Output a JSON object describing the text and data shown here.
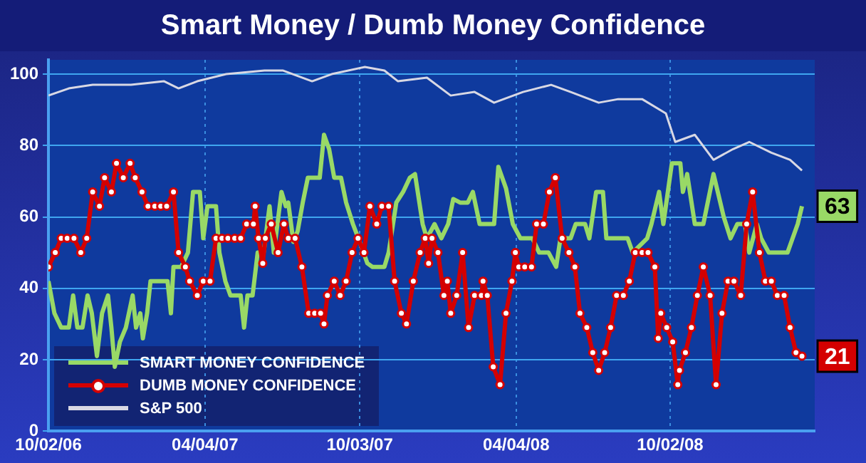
{
  "chart_data": {
    "type": "line",
    "title": "Smart Money / Dumb Money Confidence",
    "xlim": [
      "2006-10-02",
      "2009-03-21"
    ],
    "xticks": [
      {
        "value": "2006-10-02",
        "label": "10/02/06"
      },
      {
        "value": "2007-04-04",
        "label": "04/04/07"
      },
      {
        "value": "2007-10-03",
        "label": "10/03/07"
      },
      {
        "value": "2008-04-04",
        "label": "04/04/08"
      },
      {
        "value": "2008-10-02",
        "label": "10/02/08"
      }
    ],
    "ylim": [
      0,
      104
    ],
    "yticks": [
      0,
      20,
      40,
      60,
      80,
      100
    ],
    "grid": true,
    "legend": "bottom left",
    "series": [
      {
        "name": "SMART MONEY CONFIDENCE",
        "color": "#99d966",
        "marker": "none",
        "x": [
          "2006-10-02",
          "2006-10-09",
          "2006-10-17",
          "2006-10-26",
          "2006-10-31",
          "2006-11-05",
          "2006-11-11",
          "2006-11-17",
          "2006-11-22",
          "2006-11-28",
          "2006-12-04",
          "2006-12-11",
          "2006-12-15",
          "2006-12-19",
          "2006-12-25",
          "2007-01-01",
          "2007-01-09",
          "2007-01-13",
          "2007-01-18",
          "2007-01-21",
          "2007-01-26",
          "2007-01-30",
          "2007-02-19",
          "2007-02-23",
          "2007-02-26",
          "2007-03-07",
          "2007-03-15",
          "2007-03-21",
          "2007-03-29",
          "2007-04-02",
          "2007-04-07",
          "2007-04-17",
          "2007-04-21",
          "2007-04-28",
          "2007-05-04",
          "2007-05-16",
          "2007-05-20",
          "2007-05-24",
          "2007-05-30",
          "2007-06-05",
          "2007-06-12",
          "2007-06-19",
          "2007-06-24",
          "2007-07-03",
          "2007-07-08",
          "2007-07-11",
          "2007-07-17",
          "2007-07-22",
          "2007-07-28",
          "2007-08-03",
          "2007-08-17",
          "2007-08-22",
          "2007-08-28",
          "2007-09-03",
          "2007-09-11",
          "2007-09-17",
          "2007-09-25",
          "2007-10-03",
          "2007-10-12",
          "2007-10-18",
          "2007-11-01",
          "2007-11-06",
          "2007-11-15",
          "2007-11-23",
          "2007-12-01",
          "2007-12-07",
          "2007-12-16",
          "2007-12-21",
          "2007-12-30",
          "2008-01-07",
          "2008-01-15",
          "2008-01-21",
          "2008-01-29",
          "2008-02-07",
          "2008-02-13",
          "2008-02-21",
          "2008-03-09",
          "2008-03-14",
          "2008-03-23",
          "2008-03-31",
          "2008-04-09",
          "2008-04-23",
          "2008-05-01",
          "2008-05-12",
          "2008-05-21",
          "2008-05-26",
          "2008-06-07",
          "2008-06-13",
          "2008-06-24",
          "2008-06-29",
          "2008-07-07",
          "2008-07-15",
          "2008-07-19",
          "2008-08-13",
          "2008-08-19",
          "2008-09-05",
          "2008-09-10",
          "2008-09-19",
          "2008-09-24",
          "2008-10-04",
          "2008-10-14",
          "2008-10-17",
          "2008-10-22",
          "2008-10-31",
          "2008-11-10",
          "2008-11-22",
          "2008-12-04",
          "2008-12-12",
          "2008-12-20",
          "2008-12-29",
          "2009-01-03",
          "2009-01-12",
          "2009-01-17",
          "2009-01-26",
          "2009-02-17",
          "2009-02-23",
          "2009-03-01",
          "2009-03-06"
        ],
        "values": [
          42,
          33,
          29,
          29,
          38,
          29,
          29,
          38,
          33,
          21,
          33,
          38,
          29,
          18,
          25,
          29,
          38,
          29,
          33,
          26,
          33,
          42,
          42,
          33,
          46,
          46,
          50,
          67,
          67,
          54,
          63,
          63,
          50,
          42,
          38,
          38,
          29,
          38,
          38,
          50,
          50,
          63,
          50,
          67,
          63,
          64,
          53,
          56,
          64,
          71,
          71,
          83,
          79,
          71,
          71,
          64,
          58,
          53,
          47,
          46,
          46,
          50,
          64,
          67,
          71,
          72,
          58,
          54,
          58,
          54,
          58,
          65,
          64,
          64,
          67,
          58,
          58,
          74,
          68,
          58,
          54,
          54,
          50,
          50,
          46,
          54,
          54,
          58,
          58,
          54,
          67,
          67,
          54,
          54,
          50,
          54,
          58,
          67,
          58,
          75,
          75,
          67,
          72,
          58,
          58,
          72,
          60,
          54,
          58,
          58,
          50,
          58,
          54,
          50,
          50,
          54,
          58,
          63
        ]
      },
      {
        "name": "DUMB MONEY CONFIDENCE",
        "color": "#d40000",
        "marker": "circle",
        "x": [
          "2006-10-02",
          "2006-10-10",
          "2006-10-17",
          "2006-10-24",
          "2006-11-01",
          "2006-11-09",
          "2006-11-16",
          "2006-11-23",
          "2006-12-01",
          "2006-12-07",
          "2006-12-15",
          "2006-12-21",
          "2006-12-29",
          "2007-01-06",
          "2007-01-12",
          "2007-01-20",
          "2007-01-27",
          "2007-02-04",
          "2007-02-11",
          "2007-02-18",
          "2007-02-26",
          "2007-03-04",
          "2007-03-12",
          "2007-03-17",
          "2007-03-26",
          "2007-04-02",
          "2007-04-10",
          "2007-04-17",
          "2007-04-24",
          "2007-05-01",
          "2007-05-09",
          "2007-05-16",
          "2007-05-23",
          "2007-05-31",
          "2007-06-02",
          "2007-06-06",
          "2007-06-11",
          "2007-06-14",
          "2007-06-21",
          "2007-06-29",
          "2007-07-06",
          "2007-07-11",
          "2007-07-19",
          "2007-07-27",
          "2007-08-04",
          "2007-08-11",
          "2007-08-18",
          "2007-08-22",
          "2007-08-26",
          "2007-09-03",
          "2007-09-10",
          "2007-09-17",
          "2007-09-24",
          "2007-10-01",
          "2007-10-08",
          "2007-10-15",
          "2007-10-23",
          "2007-10-29",
          "2007-11-06",
          "2007-11-13",
          "2007-11-21",
          "2007-11-27",
          "2007-12-05",
          "2007-12-13",
          "2007-12-19",
          "2007-12-23",
          "2007-12-27",
          "2008-01-03",
          "2008-01-10",
          "2008-01-14",
          "2008-01-18",
          "2008-01-25",
          "2008-02-01",
          "2008-02-08",
          "2008-02-15",
          "2008-02-23",
          "2008-02-25",
          "2008-03-01",
          "2008-03-08",
          "2008-03-16",
          "2008-03-23",
          "2008-03-30",
          "2008-04-03",
          "2008-04-07",
          "2008-04-14",
          "2008-04-22",
          "2008-04-28",
          "2008-05-06",
          "2008-05-13",
          "2008-05-20",
          "2008-05-28",
          "2008-06-05",
          "2008-06-12",
          "2008-06-18",
          "2008-06-26",
          "2008-07-03",
          "2008-07-10",
          "2008-07-17",
          "2008-07-24",
          "2008-07-31",
          "2008-08-08",
          "2008-08-15",
          "2008-08-22",
          "2008-08-30",
          "2008-09-06",
          "2008-09-14",
          "2008-09-18",
          "2008-09-21",
          "2008-09-28",
          "2008-10-05",
          "2008-10-11",
          "2008-10-13",
          "2008-10-20",
          "2008-10-27",
          "2008-11-03",
          "2008-11-10",
          "2008-11-18",
          "2008-11-25",
          "2008-12-02",
          "2008-12-09",
          "2008-12-16",
          "2008-12-24",
          "2008-12-31",
          "2009-01-07",
          "2009-01-15",
          "2009-01-22",
          "2009-01-29",
          "2009-02-05",
          "2009-02-13",
          "2009-02-20",
          "2009-02-27",
          "2009-03-06"
        ],
        "values": [
          46,
          50,
          54,
          54,
          54,
          50,
          54,
          67,
          63,
          71,
          67,
          75,
          71,
          75,
          71,
          67,
          63,
          63,
          63,
          63,
          67,
          50,
          46,
          42,
          38,
          42,
          42,
          54,
          54,
          54,
          54,
          54,
          58,
          58,
          63,
          54,
          47,
          54,
          58,
          50,
          58,
          54,
          54,
          46,
          33,
          33,
          33,
          30,
          38,
          42,
          38,
          42,
          50,
          54,
          50,
          63,
          58,
          63,
          63,
          42,
          33,
          30,
          42,
          50,
          54,
          47,
          54,
          50,
          38,
          42,
          33,
          38,
          50,
          29,
          38,
          38,
          42,
          38,
          18,
          13,
          33,
          42,
          50,
          46,
          46,
          46,
          58,
          58,
          67,
          71,
          54,
          50,
          46,
          33,
          29,
          22,
          17,
          22,
          29,
          38,
          38,
          42,
          50,
          50,
          50,
          46,
          26,
          33,
          29,
          25,
          13,
          17,
          22,
          29,
          38,
          46,
          38,
          13,
          33,
          42,
          42,
          38,
          58,
          67,
          50,
          42,
          42,
          38,
          38,
          29,
          22,
          21
        ]
      },
      {
        "name": "S&P 500",
        "color": "#d8d8e4",
        "marker": "none",
        "x": [
          "2006-10-02",
          "2006-10-26",
          "2006-11-23",
          "2007-01-07",
          "2007-02-15",
          "2007-03-04",
          "2007-03-26",
          "2007-04-29",
          "2007-06-13",
          "2007-07-05",
          "2007-08-08",
          "2007-08-31",
          "2007-10-09",
          "2007-11-01",
          "2007-11-17",
          "2007-12-21",
          "2008-01-18",
          "2008-02-15",
          "2008-03-09",
          "2008-04-12",
          "2008-05-15",
          "2008-06-07",
          "2008-07-10",
          "2008-08-02",
          "2008-08-30",
          "2008-09-27",
          "2008-10-08",
          "2008-10-31",
          "2008-11-22",
          "2008-12-15",
          "2009-01-03",
          "2009-01-29",
          "2009-02-20",
          "2009-03-06"
        ],
        "values": [
          94,
          96,
          97,
          97,
          98,
          96,
          98,
          100,
          101,
          101,
          98,
          100,
          102,
          101,
          98,
          99,
          94,
          95,
          92,
          95,
          97,
          95,
          92,
          93,
          93,
          89,
          81,
          83,
          76,
          79,
          81,
          78,
          76,
          73
        ]
      }
    ],
    "annotations": [
      {
        "text": "63",
        "x": "2009-03-06",
        "y": 63
      },
      {
        "text": "21",
        "x": "2009-03-06",
        "y": 21
      }
    ]
  }
}
